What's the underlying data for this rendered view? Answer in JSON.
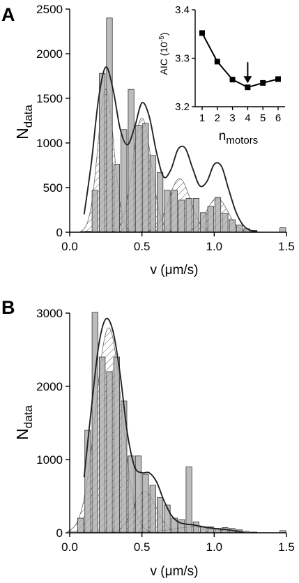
{
  "chart_data": [
    {
      "panel_label": "A",
      "type": "bar",
      "xlabel": {
        "main": "v (",
        "mu": "μ",
        "unit": "m/s)"
      },
      "ylabel": {
        "main": "N",
        "sub": "data"
      },
      "xlim": [
        0,
        1.5
      ],
      "ylim": [
        0,
        2500
      ],
      "xticks": [
        "0.0",
        "0.5",
        "1.0",
        "1.5"
      ],
      "yticks": [
        "0",
        "500",
        "1000",
        "1500",
        "2000",
        "2500"
      ],
      "bin_width": 0.05,
      "bin_left": [
        0.1,
        0.15,
        0.2,
        0.25,
        0.3,
        0.35,
        0.4,
        0.45,
        0.5,
        0.55,
        0.6,
        0.65,
        0.7,
        0.75,
        0.8,
        0.85,
        0.9,
        0.95,
        1.0,
        1.05,
        1.1,
        1.15,
        1.2,
        1.25,
        1.3,
        1.35,
        1.4,
        1.45
      ],
      "values": [
        10,
        470,
        1780,
        2400,
        760,
        1150,
        1600,
        1200,
        1220,
        860,
        670,
        470,
        470,
        360,
        380,
        380,
        220,
        290,
        390,
        210,
        140,
        80,
        40,
        20,
        0,
        0,
        0,
        50
      ],
      "fit_curve": {
        "x": [
          0.1,
          0.15,
          0.2,
          0.25,
          0.3,
          0.35,
          0.4,
          0.45,
          0.5,
          0.55,
          0.6,
          0.65,
          0.7,
          0.75,
          0.8,
          0.85,
          0.9,
          0.95,
          1.0,
          1.05,
          1.1,
          1.15,
          1.2,
          1.25,
          1.3
        ],
        "y": [
          200,
          780,
          1500,
          1850,
          1600,
          1150,
          980,
          1180,
          1450,
          1300,
          900,
          620,
          700,
          930,
          940,
          720,
          520,
          570,
          760,
          740,
          480,
          230,
          80,
          20,
          5
        ]
      },
      "components": [
        {
          "center": 0.25,
          "sd": 0.055,
          "peak": 1600
        },
        {
          "center": 0.5,
          "sd": 0.065,
          "peak": 1280
        },
        {
          "center": 0.76,
          "sd": 0.075,
          "peak": 600
        },
        {
          "center": 1.02,
          "sd": 0.075,
          "peak": 380
        }
      ],
      "inset": {
        "type": "line",
        "xlabel": {
          "main": "n",
          "sub": "motors"
        },
        "ylabel": {
          "main": "AIC (10",
          "sup": "-5",
          "end": ")"
        },
        "xticks": [
          "1",
          "2",
          "3",
          "4",
          "5",
          "6"
        ],
        "yticks": [
          "3.2",
          "3.3",
          "3.4"
        ],
        "ylim": [
          3.2,
          3.4
        ],
        "x": [
          1,
          2,
          3,
          4,
          5,
          6
        ],
        "y": [
          3.352,
          3.293,
          3.256,
          3.24,
          3.249,
          3.257
        ],
        "arrow_at": 4
      }
    },
    {
      "panel_label": "B",
      "type": "bar",
      "xlabel": {
        "main": "v (",
        "mu": "μ",
        "unit": "m/s)"
      },
      "ylabel": {
        "main": "N",
        "sub": "data"
      },
      "xlim": [
        0,
        1.5
      ],
      "ylim": [
        0,
        3000
      ],
      "xticks": [
        "0.0",
        "0.5",
        "1.0",
        "1.5"
      ],
      "yticks": [
        "0",
        "1000",
        "2000",
        "3000"
      ],
      "bin_width": 0.05,
      "bin_left": [
        0.05,
        0.1,
        0.15,
        0.2,
        0.25,
        0.3,
        0.35,
        0.4,
        0.45,
        0.5,
        0.55,
        0.6,
        0.65,
        0.7,
        0.75,
        0.8,
        0.85,
        0.9,
        0.95,
        1.0,
        1.05,
        1.1,
        1.15,
        1.2,
        1.25,
        1.3,
        1.35,
        1.4,
        1.45
      ],
      "values": [
        200,
        1400,
        3010,
        2400,
        2200,
        2400,
        1800,
        1050,
        1050,
        800,
        650,
        480,
        380,
        200,
        180,
        900,
        150,
        80,
        80,
        60,
        70,
        60,
        40,
        20,
        10,
        0,
        0,
        0,
        30
      ],
      "fit_curve": {
        "x": [
          0.1,
          0.15,
          0.2,
          0.25,
          0.3,
          0.35,
          0.4,
          0.45,
          0.5,
          0.55,
          0.6,
          0.65,
          0.7,
          0.75,
          0.8,
          0.85,
          0.9,
          1.0,
          1.1,
          1.2
        ],
        "y": [
          760,
          1700,
          2550,
          2920,
          2750,
          2150,
          1350,
          900,
          820,
          820,
          700,
          450,
          250,
          150,
          120,
          110,
          90,
          60,
          40,
          10
        ]
      },
      "components": [
        {
          "center": 0.27,
          "sd": 0.09,
          "peak": 2800
        },
        {
          "center": 0.52,
          "sd": 0.08,
          "peak": 560
        },
        {
          "center": 0.85,
          "sd": 0.15,
          "peak": 80
        }
      ]
    }
  ]
}
